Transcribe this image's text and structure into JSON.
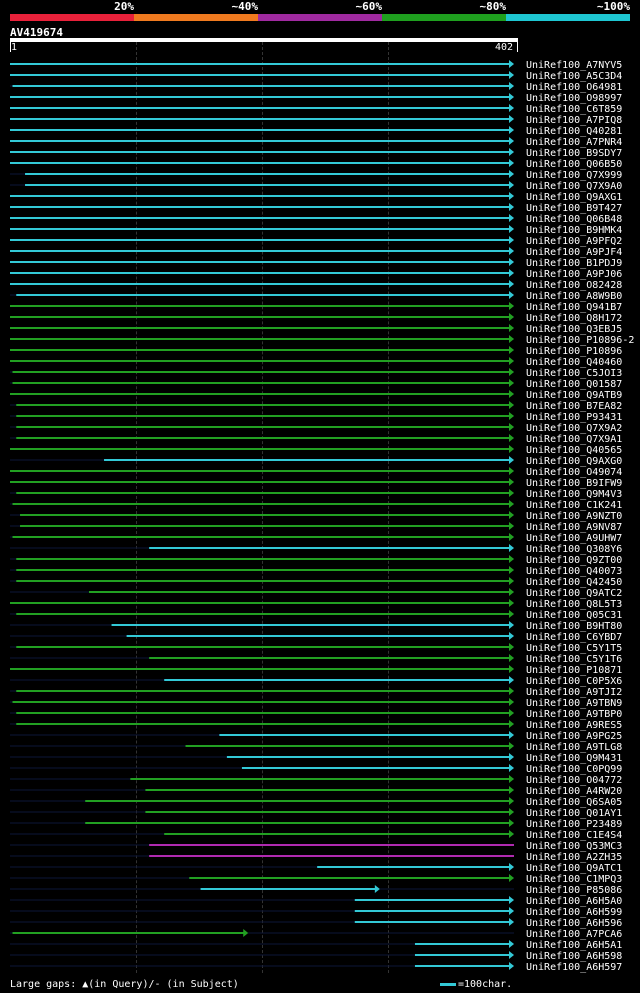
{
  "header": {
    "percent_labels": [
      "20%",
      "~40%",
      "~60%",
      "~80%",
      "~100%"
    ],
    "colors": [
      "#e8213a",
      "#f07a1f",
      "#a02aa0",
      "#1fa01f",
      "#1ec6d2"
    ]
  },
  "query": {
    "name": "AV419674",
    "start": "1",
    "end": "402"
  },
  "legend": {
    "gaps": "Large gaps: ▲(in Query)/- (in Subject)",
    "scale": "=100char."
  },
  "hits": [
    {
      "label": "UniRef100_A7NYV5",
      "color": "cyan",
      "s": 0,
      "e": 402,
      "arrow": true
    },
    {
      "label": "UniRef100_A5C3D4",
      "color": "cyan",
      "s": 0,
      "e": 402,
      "arrow": true
    },
    {
      "label": "UniRef100_O64981",
      "color": "cyan",
      "s": 2,
      "e": 402,
      "arrow": true
    },
    {
      "label": "UniRef100_O98997",
      "color": "cyan",
      "s": 0,
      "e": 402,
      "arrow": true
    },
    {
      "label": "UniRef100_C6T859",
      "color": "cyan",
      "s": 0,
      "e": 402,
      "arrow": true
    },
    {
      "label": "UniRef100_A7PIQ8",
      "color": "cyan",
      "s": 0,
      "e": 402,
      "arrow": true
    },
    {
      "label": "UniRef100_Q40281",
      "color": "cyan",
      "s": 0,
      "e": 402,
      "arrow": true
    },
    {
      "label": "UniRef100_A7PNR4",
      "color": "cyan",
      "s": 0,
      "e": 402,
      "arrow": true
    },
    {
      "label": "UniRef100_B9SDY7",
      "color": "cyan",
      "s": 0,
      "e": 402,
      "arrow": true
    },
    {
      "label": "UniRef100_Q06B50",
      "color": "cyan",
      "s": 0,
      "e": 402,
      "arrow": true
    },
    {
      "label": "UniRef100_Q7X999",
      "color": "cyan",
      "s": 12,
      "e": 402,
      "arrow": true
    },
    {
      "label": "UniRef100_Q7X9A0",
      "color": "cyan",
      "s": 12,
      "e": 402,
      "arrow": true
    },
    {
      "label": "UniRef100_Q9AXG1",
      "color": "cyan",
      "s": 0,
      "e": 402,
      "arrow": true
    },
    {
      "label": "UniRef100_B9T427",
      "color": "cyan",
      "s": 0,
      "e": 402,
      "arrow": true
    },
    {
      "label": "UniRef100_Q06B48",
      "color": "cyan",
      "s": 0,
      "e": 402,
      "arrow": true
    },
    {
      "label": "UniRef100_B9HMK4",
      "color": "cyan",
      "s": 0,
      "e": 402,
      "arrow": true
    },
    {
      "label": "UniRef100_A9PFQ2",
      "color": "cyan",
      "s": 0,
      "e": 402,
      "arrow": true
    },
    {
      "label": "UniRef100_A9PJF4",
      "color": "cyan",
      "s": 0,
      "e": 402,
      "arrow": true
    },
    {
      "label": "UniRef100_B1PDJ9",
      "color": "cyan",
      "s": 0,
      "e": 402,
      "arrow": true
    },
    {
      "label": "UniRef100_A9PJ06",
      "color": "cyan",
      "s": 0,
      "e": 402,
      "arrow": true
    },
    {
      "label": "UniRef100_O82428",
      "color": "cyan",
      "s": 0,
      "e": 402,
      "arrow": true
    },
    {
      "label": "UniRef100_A8W9B0",
      "color": "cyan",
      "s": 5,
      "e": 402,
      "arrow": true
    },
    {
      "label": "UniRef100_Q941B7",
      "color": "green",
      "s": 0,
      "e": 402,
      "arrow": true
    },
    {
      "label": "UniRef100_Q8H172",
      "color": "green",
      "s": 0,
      "e": 402,
      "arrow": true
    },
    {
      "label": "UniRef100_Q3EBJ5",
      "color": "green",
      "s": 0,
      "e": 402,
      "arrow": true
    },
    {
      "label": "UniRef100_P10896-2",
      "color": "green",
      "s": 0,
      "e": 402,
      "arrow": true
    },
    {
      "label": "UniRef100_P10896",
      "color": "green",
      "s": 0,
      "e": 402,
      "arrow": true
    },
    {
      "label": "UniRef100_Q40460",
      "color": "green",
      "s": 0,
      "e": 402,
      "arrow": true
    },
    {
      "label": "UniRef100_C5JOI3",
      "color": "green",
      "s": 2,
      "e": 402,
      "arrow": true
    },
    {
      "label": "UniRef100_Q01587",
      "color": "green",
      "s": 2,
      "e": 402,
      "arrow": true
    },
    {
      "label": "UniRef100_Q9ATB9",
      "color": "green",
      "s": 0,
      "e": 402,
      "arrow": true
    },
    {
      "label": "UniRef100_B7EA82",
      "color": "green",
      "s": 5,
      "e": 402,
      "arrow": true
    },
    {
      "label": "UniRef100_P93431",
      "color": "green",
      "s": 5,
      "e": 402,
      "arrow": true
    },
    {
      "label": "UniRef100_Q7X9A2",
      "color": "green",
      "s": 5,
      "e": 402,
      "arrow": true
    },
    {
      "label": "UniRef100_Q7X9A1",
      "color": "green",
      "s": 5,
      "e": 402,
      "arrow": true
    },
    {
      "label": "UniRef100_Q40565",
      "color": "green",
      "s": 0,
      "e": 402,
      "arrow": true
    },
    {
      "label": "UniRef100_Q9AXG0",
      "color": "cyan",
      "s": 75,
      "e": 402,
      "arrow": true
    },
    {
      "label": "UniRef100_O49074",
      "color": "green",
      "s": 0,
      "e": 402,
      "arrow": true
    },
    {
      "label": "UniRef100_B9IFW9",
      "color": "green",
      "s": 0,
      "e": 402,
      "arrow": true
    },
    {
      "label": "UniRef100_Q9M4V3",
      "color": "green",
      "s": 5,
      "e": 402,
      "arrow": true
    },
    {
      "label": "UniRef100_C1K241",
      "color": "green",
      "s": 2,
      "e": 402,
      "arrow": true
    },
    {
      "label": "UniRef100_A9NZT0",
      "color": "green",
      "s": 8,
      "e": 402,
      "arrow": true
    },
    {
      "label": "UniRef100_A9NV87",
      "color": "green",
      "s": 8,
      "e": 402,
      "arrow": true
    },
    {
      "label": "UniRef100_A9UHW7",
      "color": "green",
      "s": 2,
      "e": 402,
      "arrow": true
    },
    {
      "label": "UniRef100_Q308Y6",
      "color": "cyan",
      "s": 111,
      "e": 402,
      "arrow": true
    },
    {
      "label": "UniRef100_Q9ZT00",
      "color": "green",
      "s": 5,
      "e": 402,
      "arrow": true
    },
    {
      "label": "UniRef100_Q40073",
      "color": "green",
      "s": 5,
      "e": 402,
      "arrow": true
    },
    {
      "label": "UniRef100_Q42450",
      "color": "green",
      "s": 5,
      "e": 402,
      "arrow": true
    },
    {
      "label": "UniRef100_Q9ATC2",
      "color": "green",
      "s": 63,
      "e": 402,
      "arrow": true
    },
    {
      "label": "UniRef100_Q8L5T3",
      "color": "green",
      "s": 0,
      "e": 402,
      "arrow": true
    },
    {
      "label": "UniRef100_Q05C31",
      "color": "green",
      "s": 5,
      "e": 402,
      "arrow": true
    },
    {
      "label": "UniRef100_B9HT80",
      "color": "cyan",
      "s": 81,
      "e": 402,
      "arrow": true
    },
    {
      "label": "UniRef100_C6YBD7",
      "color": "cyan",
      "s": 93,
      "e": 402,
      "arrow": true
    },
    {
      "label": "UniRef100_C5Y1T5",
      "color": "green",
      "s": 5,
      "e": 402,
      "arrow": true
    },
    {
      "label": "UniRef100_C5Y1T6",
      "color": "green",
      "s": 111,
      "e": 402,
      "arrow": true
    },
    {
      "label": "UniRef100_P10871",
      "color": "green",
      "s": 0,
      "e": 402,
      "arrow": true
    },
    {
      "label": "UniRef100_C0P5X6",
      "color": "cyan",
      "s": 123,
      "e": 402,
      "arrow": true
    },
    {
      "label": "UniRef100_A9TJI2",
      "color": "green",
      "s": 5,
      "e": 402,
      "arrow": true
    },
    {
      "label": "UniRef100_A9TBN9",
      "color": "green",
      "s": 2,
      "e": 402,
      "arrow": true
    },
    {
      "label": "UniRef100_A9TBP0",
      "color": "green",
      "s": 5,
      "e": 402,
      "arrow": true
    },
    {
      "label": "UniRef100_A9RES5",
      "color": "green",
      "s": 5,
      "e": 402,
      "arrow": true
    },
    {
      "label": "UniRef100_A9PG25",
      "color": "cyan",
      "s": 167,
      "e": 402,
      "arrow": true
    },
    {
      "label": "UniRef100_A9TLG8",
      "color": "green",
      "s": 140,
      "e": 402,
      "arrow": true
    },
    {
      "label": "UniRef100_Q9M431",
      "color": "cyan",
      "s": 173,
      "e": 402,
      "arrow": true
    },
    {
      "label": "UniRef100_C0PQ99",
      "color": "cyan",
      "s": 185,
      "e": 402,
      "arrow": true
    },
    {
      "label": "UniRef100_O04772",
      "color": "green",
      "s": 96,
      "e": 402,
      "arrow": true
    },
    {
      "label": "UniRef100_A4RW20",
      "color": "green",
      "s": 108,
      "e": 402,
      "arrow": true
    },
    {
      "label": "UniRef100_Q6SA05",
      "color": "green",
      "s": 60,
      "e": 402,
      "arrow": true
    },
    {
      "label": "UniRef100_Q01AY1",
      "color": "green",
      "s": 108,
      "e": 402,
      "arrow": true
    },
    {
      "label": "UniRef100_P23489",
      "color": "green",
      "s": 60,
      "e": 402,
      "arrow": true
    },
    {
      "label": "UniRef100_C1E4S4",
      "color": "green",
      "s": 123,
      "e": 402,
      "arrow": true
    },
    {
      "label": "UniRef100_Q53MC3",
      "color": "purple",
      "s": 111,
      "e": 402,
      "arrow": false
    },
    {
      "label": "UniRef100_A2ZH35",
      "color": "purple",
      "s": 111,
      "e": 402,
      "arrow": false
    },
    {
      "label": "UniRef100_Q9ATC1",
      "color": "cyan",
      "s": 245,
      "e": 402,
      "arrow": true
    },
    {
      "label": "UniRef100_C1MPQ3",
      "color": "green",
      "s": 143,
      "e": 402,
      "arrow": true
    },
    {
      "label": "UniRef100_P85086",
      "color": "cyan",
      "s": 152,
      "e": 295,
      "arrow": true
    },
    {
      "label": "UniRef100_A6H5A0",
      "color": "cyan",
      "s": 275,
      "e": 402,
      "arrow": true
    },
    {
      "label": "UniRef100_A6H599",
      "color": "cyan",
      "s": 275,
      "e": 402,
      "arrow": true
    },
    {
      "label": "UniRef100_A6H596",
      "color": "cyan",
      "s": 275,
      "e": 402,
      "arrow": true
    },
    {
      "label": "UniRef100_A7PCA6",
      "color": "green",
      "s": 2,
      "e": 190,
      "arrow": true
    },
    {
      "label": "UniRef100_A6H5A1",
      "color": "cyan",
      "s": 323,
      "e": 402,
      "arrow": true
    },
    {
      "label": "UniRef100_A6H598",
      "color": "cyan",
      "s": 323,
      "e": 402,
      "arrow": true
    },
    {
      "label": "UniRef100_A6H597",
      "color": "cyan",
      "s": 323,
      "e": 402,
      "arrow": true
    }
  ]
}
